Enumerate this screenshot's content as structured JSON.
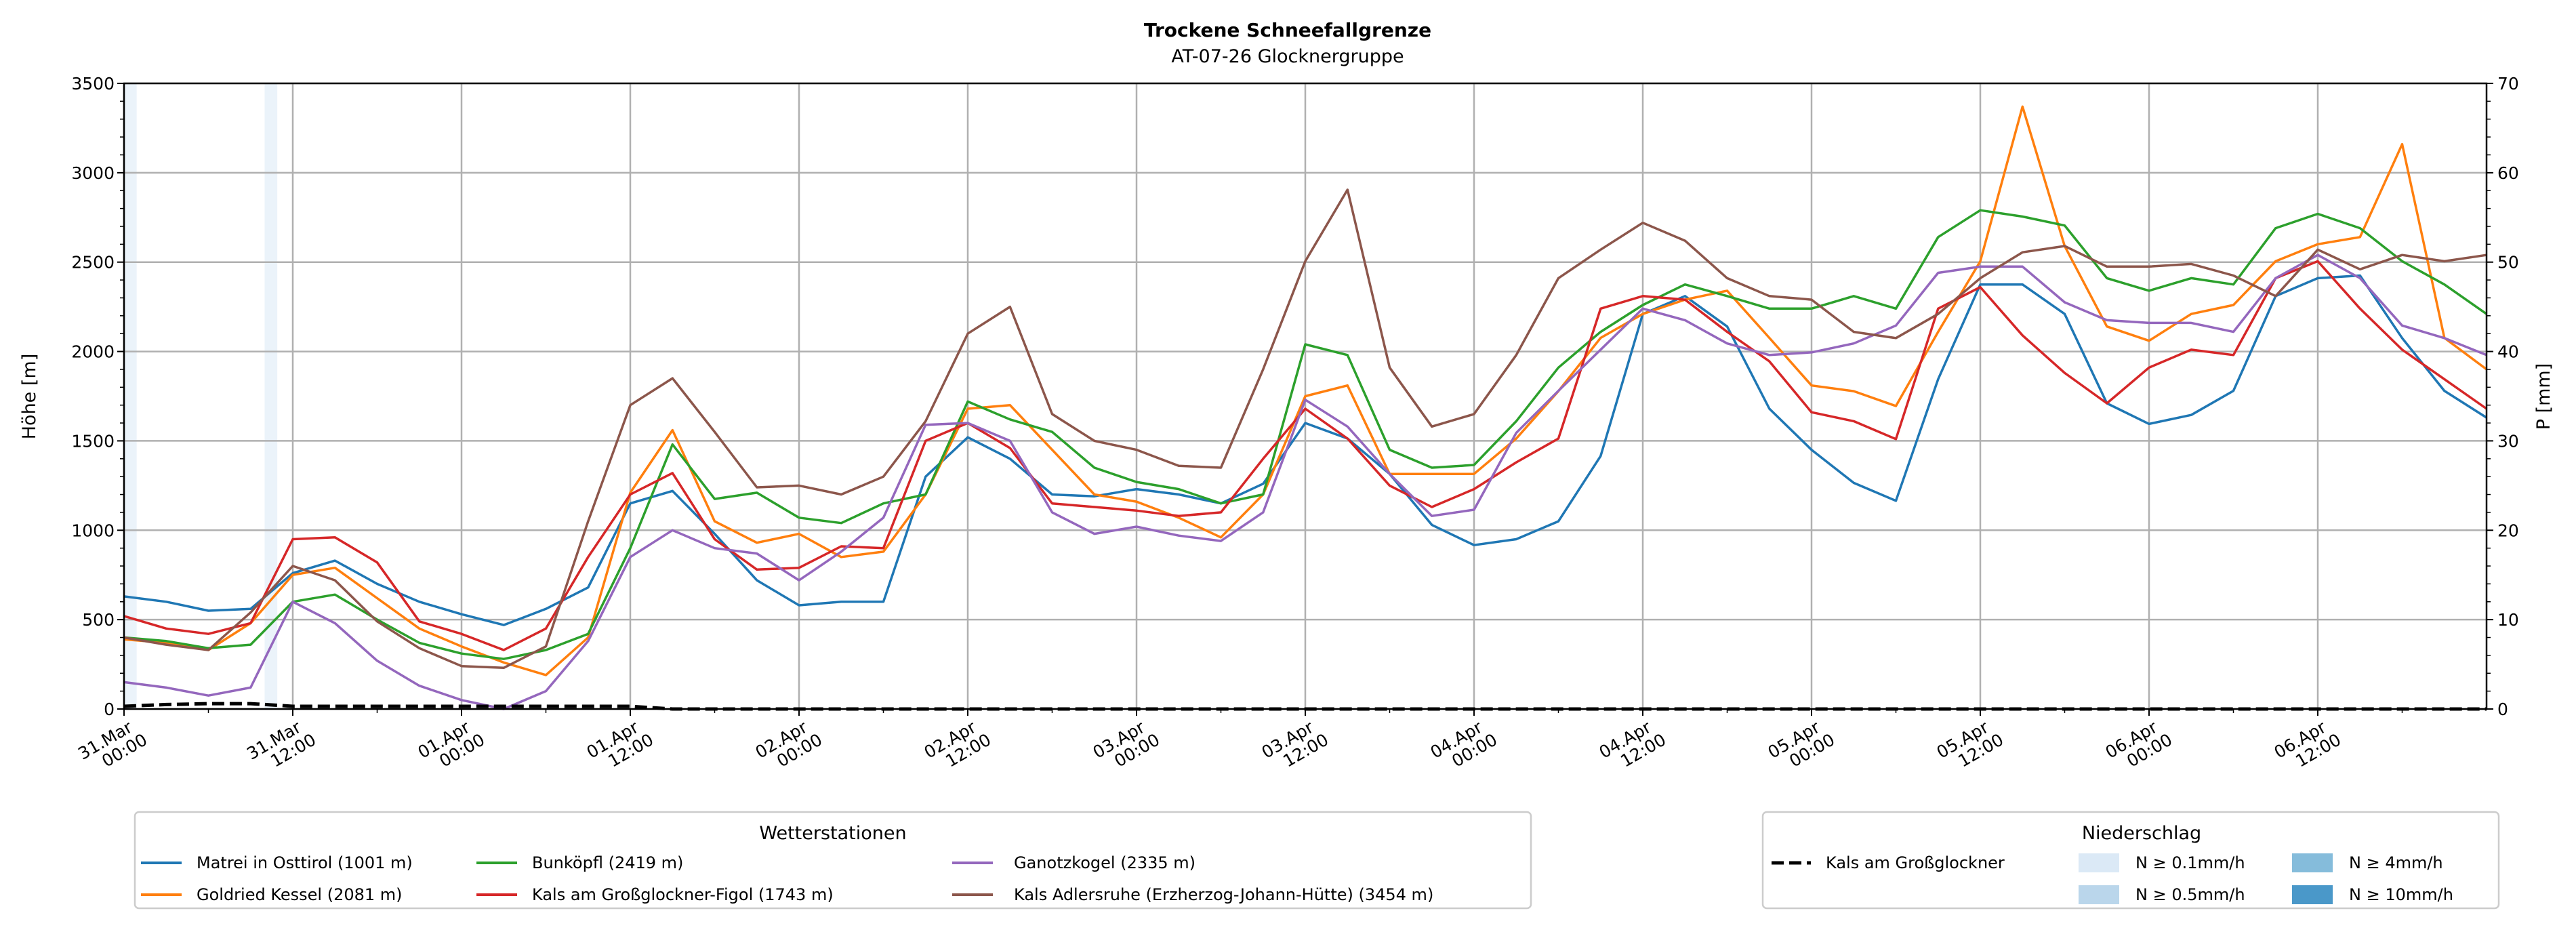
{
  "chart_data": {
    "type": "line",
    "title": "Trockene Schneefallgrenze",
    "subtitle": "AT-07-26 Glocknergruppe",
    "ylabel": "Höhe [m]",
    "ylabel_right": "P [mm]",
    "ylim": [
      0,
      3500
    ],
    "ylim_right": [
      0,
      70
    ],
    "y_ticks": [
      "0",
      "500",
      "1000",
      "1500",
      "2000",
      "2500",
      "3000",
      "3500"
    ],
    "y_ticks_right": [
      "0",
      "10",
      "20",
      "30",
      "40",
      "50",
      "60",
      "70"
    ],
    "grid": true,
    "x_unit": "hours since 31.Mar 00:00",
    "x_range": [
      0,
      168
    ],
    "x_ticks": [
      {
        "hour": 0,
        "l1": "31.Mar",
        "l2": "00:00"
      },
      {
        "hour": 12,
        "l1": "31.Mar",
        "l2": "12:00"
      },
      {
        "hour": 24,
        "l1": "01.Apr",
        "l2": "00:00"
      },
      {
        "hour": 36,
        "l1": "01.Apr",
        "l2": "12:00"
      },
      {
        "hour": 48,
        "l1": "02.Apr",
        "l2": "00:00"
      },
      {
        "hour": 60,
        "l1": "02.Apr",
        "l2": "12:00"
      },
      {
        "hour": 72,
        "l1": "03.Apr",
        "l2": "00:00"
      },
      {
        "hour": 84,
        "l1": "03.Apr",
        "l2": "12:00"
      },
      {
        "hour": 96,
        "l1": "04.Apr",
        "l2": "00:00"
      },
      {
        "hour": 108,
        "l1": "04.Apr",
        "l2": "12:00"
      },
      {
        "hour": 120,
        "l1": "05.Apr",
        "l2": "00:00"
      },
      {
        "hour": 132,
        "l1": "05.Apr",
        "l2": "12:00"
      },
      {
        "hour": 144,
        "l1": "06.Apr",
        "l2": "00:00"
      },
      {
        "hour": 156,
        "l1": "06.Apr",
        "l2": "12:00"
      }
    ],
    "x_step_hours": 3,
    "series": [
      {
        "name": "Matrei in Osttirol (1001 m)",
        "color": "#1f77b4",
        "values": [
          630,
          600,
          550,
          560,
          760,
          830,
          700,
          600,
          530,
          470,
          560,
          680,
          1150,
          1220,
          980,
          720,
          580,
          600,
          600,
          1300,
          1520,
          1400,
          1200,
          1190,
          1230,
          1200,
          1150,
          1260,
          1600,
          1513,
          1315,
          1030,
          917,
          950,
          1050,
          1415,
          2210,
          2310,
          2140,
          1680,
          1450,
          1265,
          1165,
          1845,
          2375,
          2375,
          2210,
          1710,
          1595,
          1645,
          1780,
          2310,
          2410,
          2425,
          2075,
          1780,
          1630
        ]
      },
      {
        "name": "Goldried Kessel (2081 m)",
        "color": "#ff7f0e",
        "values": [
          390,
          370,
          330,
          480,
          750,
          790,
          620,
          450,
          350,
          260,
          190,
          400,
          1210,
          1560,
          1050,
          930,
          980,
          850,
          880,
          1200,
          1680,
          1700,
          1450,
          1200,
          1160,
          1070,
          960,
          1200,
          1750,
          1810,
          1315,
          1315,
          1315,
          1513,
          1778,
          2076,
          2210,
          2290,
          2340,
          2076,
          1810,
          1778,
          1695,
          2110,
          2505,
          3370,
          2590,
          2140,
          2060,
          2210,
          2260,
          2505,
          2600,
          2640,
          3160,
          2076,
          1900
        ]
      },
      {
        "name": "Bunköpfl (2419 m)",
        "color": "#2ca02c",
        "values": [
          400,
          380,
          340,
          360,
          600,
          640,
          500,
          370,
          310,
          280,
          330,
          420,
          900,
          1480,
          1175,
          1210,
          1070,
          1040,
          1150,
          1200,
          1720,
          1620,
          1550,
          1350,
          1270,
          1230,
          1150,
          1200,
          2040,
          1980,
          1450,
          1350,
          1365,
          1610,
          1910,
          2110,
          2260,
          2375,
          2310,
          2240,
          2240,
          2310,
          2240,
          2640,
          2790,
          2755,
          2705,
          2410,
          2340,
          2410,
          2375,
          2690,
          2770,
          2690,
          2505,
          2375,
          2210
        ]
      },
      {
        "name": "Kals am Großglockner-Figol (1743 m)",
        "color": "#d62728",
        "values": [
          520,
          450,
          420,
          480,
          950,
          960,
          820,
          490,
          420,
          330,
          450,
          850,
          1200,
          1320,
          950,
          780,
          790,
          910,
          900,
          1500,
          1600,
          1460,
          1150,
          1130,
          1110,
          1080,
          1100,
          1400,
          1680,
          1513,
          1250,
          1130,
          1230,
          1380,
          1513,
          2240,
          2310,
          2290,
          2110,
          1945,
          1660,
          1610,
          1510,
          2240,
          2360,
          2090,
          1880,
          1710,
          1910,
          2010,
          1980,
          2410,
          2505,
          2240,
          2010,
          1845,
          1680
        ]
      },
      {
        "name": "Ganotzkogel (2335 m)",
        "color": "#9467bd",
        "values": [
          150,
          120,
          75,
          120,
          600,
          480,
          270,
          130,
          50,
          0,
          100,
          380,
          850,
          1000,
          900,
          870,
          720,
          880,
          1070,
          1590,
          1600,
          1500,
          1100,
          980,
          1020,
          970,
          940,
          1100,
          1730,
          1580,
          1315,
          1080,
          1115,
          1545,
          1780,
          2010,
          2240,
          2175,
          2045,
          1980,
          1995,
          2045,
          2145,
          2440,
          2475,
          2475,
          2275,
          2175,
          2160,
          2160,
          2110,
          2410,
          2540,
          2410,
          2145,
          2075,
          1980
        ]
      },
      {
        "name": "Kals Adlersruhe (Erzherzog-Johann-Hütte) (3454 m)",
        "color": "#8c564b",
        "values": [
          400,
          360,
          330,
          540,
          800,
          720,
          490,
          340,
          240,
          230,
          350,
          1050,
          1700,
          1850,
          1550,
          1240,
          1250,
          1200,
          1300,
          1610,
          2100,
          2250,
          1650,
          1500,
          1450,
          1360,
          1350,
          1900,
          2505,
          2905,
          1910,
          1580,
          1650,
          1980,
          2410,
          2570,
          2720,
          2620,
          2410,
          2310,
          2290,
          2110,
          2075,
          2210,
          2410,
          2555,
          2590,
          2475,
          2475,
          2490,
          2425,
          2310,
          2570,
          2460,
          2540,
          2505,
          2540
        ]
      }
    ],
    "precip_series": {
      "name": "Kals am Großglockner",
      "color": "#000000",
      "values_mm": [
        0.3,
        0.5,
        0.6,
        0.6,
        0.3,
        0.3,
        0.3,
        0.3,
        0.3,
        0.3,
        0.3,
        0.3,
        0.3,
        0,
        0,
        0,
        0,
        0,
        0,
        0,
        0,
        0,
        0,
        0,
        0,
        0,
        0,
        0,
        0,
        0,
        0,
        0,
        0,
        0,
        0,
        0,
        0,
        0,
        0,
        0,
        0,
        0,
        0,
        0,
        0,
        0,
        0,
        0,
        0,
        0,
        0,
        0,
        0,
        0,
        0,
        0,
        0
      ]
    },
    "precip_bars": [
      {
        "hour": 0,
        "class": 0
      },
      {
        "hour": 10,
        "class": 0
      }
    ],
    "legend_stations": {
      "title": "Wetterstationen",
      "placement": "bottom-left"
    },
    "legend_precip": {
      "title": "Niederschlag",
      "placement": "bottom-right",
      "classes": [
        {
          "label": "N ≥ 0.1mm/h",
          "color": "#dbe9f6"
        },
        {
          "label": "N ≥ 0.5mm/h",
          "color": "#bad6eb"
        },
        {
          "label": "N ≥ 4mm/h",
          "color": "#85bcdb"
        },
        {
          "label": "N ≥ 10mm/h",
          "color": "#4a98c9"
        }
      ]
    }
  }
}
